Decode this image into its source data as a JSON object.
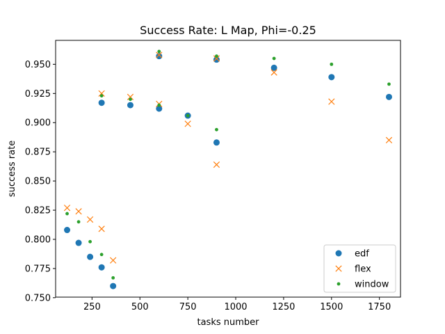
{
  "chart_data": {
    "type": "scatter",
    "title": "Success Rate: L Map, Phi=-0.25",
    "xlabel": "tasks number",
    "ylabel": "success rate",
    "xlim": [
      60,
      1860
    ],
    "ylim": [
      0.7505,
      0.9705
    ],
    "xticks": [
      250,
      500,
      750,
      1000,
      1250,
      1500,
      1750
    ],
    "yticks": [
      0.75,
      0.775,
      0.8,
      0.825,
      0.85,
      0.875,
      0.9,
      0.925,
      0.95
    ],
    "xtick_labels": [
      "250",
      "500",
      "750",
      "1000",
      "1250",
      "1500",
      "1750"
    ],
    "ytick_labels": [
      "0.750",
      "0.775",
      "0.800",
      "0.825",
      "0.850",
      "0.875",
      "0.900",
      "0.925",
      "0.950"
    ],
    "grid": false,
    "legend_position": "lower-right",
    "series": [
      {
        "name": "edf",
        "marker": "circle",
        "color": "#1f77b4",
        "x": [
          120,
          180,
          240,
          300,
          360,
          300,
          450,
          600,
          600,
          750,
          900,
          900,
          1200,
          1500,
          1800
        ],
        "y": [
          0.808,
          0.797,
          0.785,
          0.776,
          0.76,
          0.917,
          0.915,
          0.912,
          0.957,
          0.906,
          0.883,
          0.954,
          0.947,
          0.939,
          0.922
        ]
      },
      {
        "name": "flex",
        "marker": "x",
        "color": "#ff7f0e",
        "x": [
          120,
          180,
          240,
          300,
          360,
          300,
          450,
          600,
          600,
          750,
          900,
          900,
          1200,
          1500,
          1800
        ],
        "y": [
          0.827,
          0.824,
          0.817,
          0.809,
          0.782,
          0.925,
          0.922,
          0.916,
          0.958,
          0.899,
          0.864,
          0.955,
          0.943,
          0.918,
          0.885
        ]
      },
      {
        "name": "window",
        "marker": "dot",
        "color": "#2ca02c",
        "x": [
          120,
          180,
          240,
          300,
          360,
          300,
          450,
          600,
          600,
          750,
          900,
          900,
          1200,
          1500,
          1800
        ],
        "y": [
          0.822,
          0.815,
          0.798,
          0.787,
          0.767,
          0.923,
          0.92,
          0.915,
          0.961,
          0.906,
          0.894,
          0.957,
          0.955,
          0.95,
          0.933
        ]
      }
    ]
  }
}
